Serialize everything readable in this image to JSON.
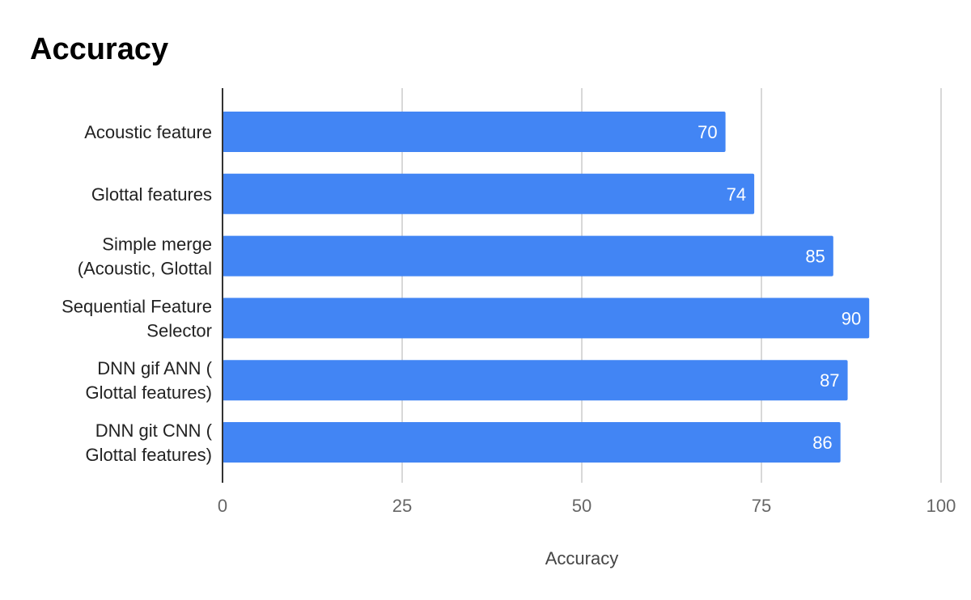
{
  "chart_data": {
    "type": "bar",
    "orientation": "horizontal",
    "title": "Accuracy",
    "xlabel": "Accuracy",
    "ylabel": "",
    "categories": [
      [
        "Acoustic feature"
      ],
      [
        "Glottal features"
      ],
      [
        "Simple merge",
        "(Acoustic, Glottal"
      ],
      [
        "Sequential Feature",
        "Selector"
      ],
      [
        "DNN gif ANN (",
        "Glottal features)"
      ],
      [
        "DNN git CNN (",
        "Glottal features)"
      ]
    ],
    "values": [
      70,
      74,
      85,
      90,
      87,
      86
    ],
    "xlim": [
      0,
      100
    ],
    "ticks": [
      "0",
      "25",
      "50",
      "75",
      "100"
    ],
    "tick_values": [
      0,
      25,
      50,
      75,
      100
    ],
    "grid": true,
    "legend": "none",
    "bar_color": "#4285f4",
    "grid_color": "#cccccc",
    "axis_color": "#333333"
  }
}
